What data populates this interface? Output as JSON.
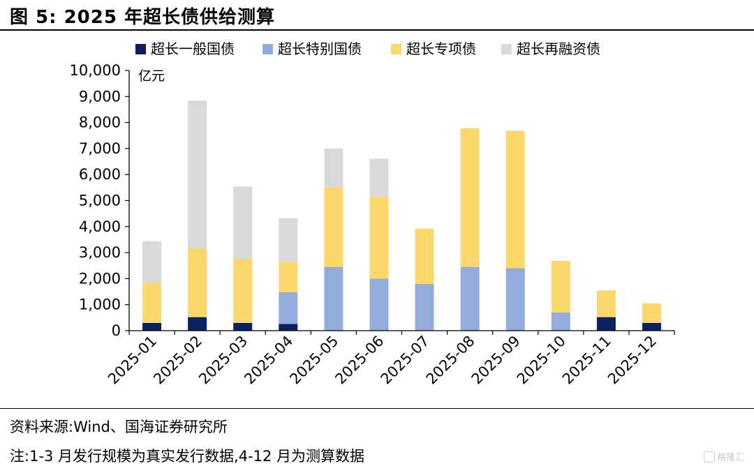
{
  "figure": {
    "title": "图 5:  2025 年超长债供给测算",
    "source": "资料来源:Wind、国海证券研究所",
    "note": "注:1-3 月发行规模为真实发行数据,4-12 月为测算数据",
    "watermark": "格隆汇"
  },
  "chart_data": {
    "type": "bar",
    "stacked": true,
    "title": "",
    "xlabel": "",
    "ylabel": "亿元",
    "ylim": [
      0,
      10000
    ],
    "yticks": [
      0,
      1000,
      2000,
      3000,
      4000,
      5000,
      6000,
      7000,
      8000,
      9000,
      10000
    ],
    "ytick_labels": [
      "0",
      "1,000",
      "2,000",
      "3,000",
      "4,000",
      "5,000",
      "6,000",
      "7,000",
      "8,000",
      "9,000",
      "10,000"
    ],
    "grid": false,
    "legend_position": "top",
    "categories": [
      "2025-01",
      "2025-02",
      "2025-03",
      "2025-04",
      "2025-05",
      "2025-06",
      "2025-07",
      "2025-08",
      "2025-09",
      "2025-10",
      "2025-11",
      "2025-12"
    ],
    "series": [
      {
        "name": "超长一般国债",
        "color": "#0b2060",
        "values": [
          300,
          520,
          300,
          260,
          0,
          0,
          0,
          0,
          0,
          0,
          520,
          300
        ]
      },
      {
        "name": "超长特别国债",
        "color": "#93acdb",
        "values": [
          0,
          0,
          0,
          1220,
          2450,
          2000,
          1800,
          2450,
          2400,
          700,
          0,
          0
        ]
      },
      {
        "name": "超长专项债",
        "color": "#fcd86c",
        "values": [
          1540,
          2640,
          2470,
          1160,
          3050,
          3150,
          2120,
          5330,
          5280,
          1980,
          1030,
          750
        ]
      },
      {
        "name": "超长再融资债",
        "color": "#d9d9d9",
        "values": [
          1600,
          5680,
          2770,
          1680,
          1500,
          1460,
          0,
          0,
          0,
          0,
          0,
          0
        ]
      }
    ]
  }
}
